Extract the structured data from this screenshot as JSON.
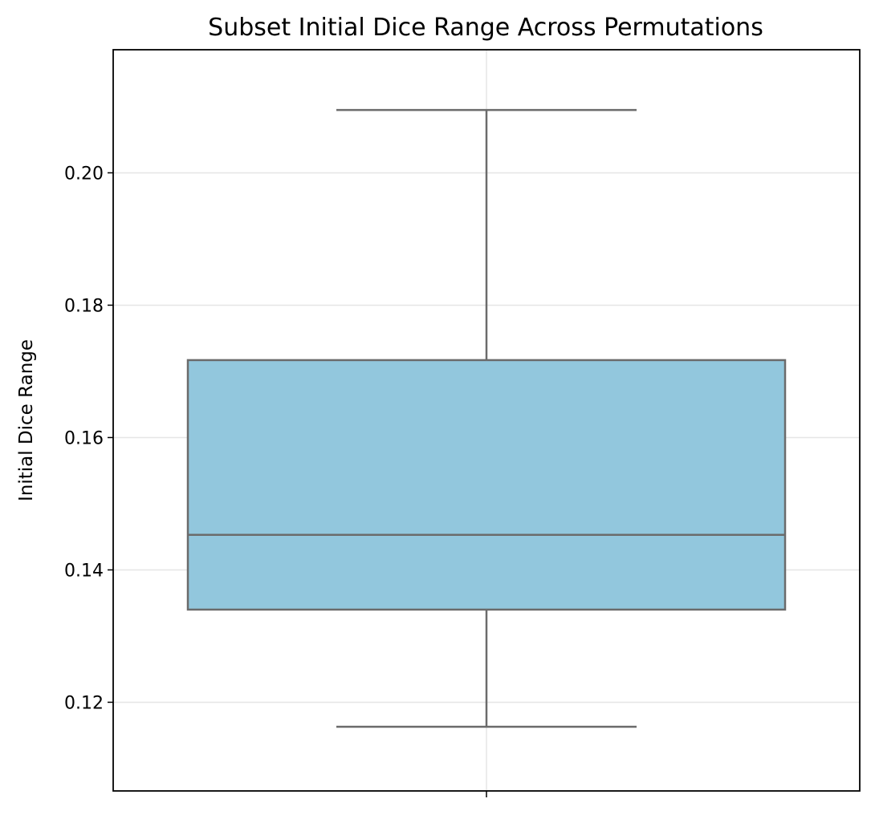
{
  "chart_data": {
    "type": "box",
    "title": "Subset Initial Dice Range Across Permutations",
    "xlabel": "",
    "ylabel": "Initial Dice Range",
    "ylim": [
      0.1066,
      0.2186
    ],
    "yticks": [
      0.12,
      0.14,
      0.16,
      0.18,
      0.2
    ],
    "ytick_labels": [
      "0.12",
      "0.14",
      "0.16",
      "0.18",
      "0.20"
    ],
    "grid": true,
    "series": [
      {
        "whisker_low": 0.1163,
        "q1": 0.134,
        "median": 0.1453,
        "q3": 0.1717,
        "whisker_high": 0.2095,
        "color": "#92c7dd"
      }
    ],
    "colors": {
      "box_fill": "#92c7dd",
      "box_edge": "#6b6b6b",
      "grid": "#e6e6e6",
      "axes": "#000000"
    }
  }
}
